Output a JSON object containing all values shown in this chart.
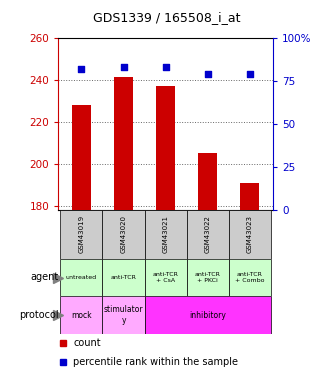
{
  "title": "GDS1339 / 165508_i_at",
  "samples": [
    "GSM43019",
    "GSM43020",
    "GSM43021",
    "GSM43022",
    "GSM43023"
  ],
  "count_values": [
    228,
    241,
    237,
    205,
    191
  ],
  "percentile_values": [
    82,
    83,
    83,
    79,
    79
  ],
  "ylim_left": [
    178,
    260
  ],
  "ylim_right": [
    0,
    100
  ],
  "yticks_left": [
    180,
    200,
    220,
    240,
    260
  ],
  "yticks_right": [
    0,
    25,
    50,
    75,
    100
  ],
  "right_tick_labels": [
    "0",
    "25",
    "50",
    "75",
    "100%"
  ],
  "bar_color": "#cc0000",
  "dot_color": "#0000cc",
  "agent_labels": [
    "untreated",
    "anti-TCR",
    "anti-TCR\n+ CsA",
    "anti-TCR\n+ PKCi",
    "anti-TCR\n+ Combo"
  ],
  "agent_bg": "#ccffcc",
  "protocol_spans": [
    [
      0,
      0,
      "mock",
      "#ffaaff"
    ],
    [
      1,
      1,
      "stimulator\ny",
      "#ffaaff"
    ],
    [
      2,
      4,
      "inhibitory",
      "#ff33ff"
    ]
  ],
  "sample_bg": "#cccccc",
  "grid_color": "#666666",
  "left_axis_color": "#cc0000",
  "right_axis_color": "#0000cc",
  "title_fontsize": 9,
  "bar_width": 0.45
}
